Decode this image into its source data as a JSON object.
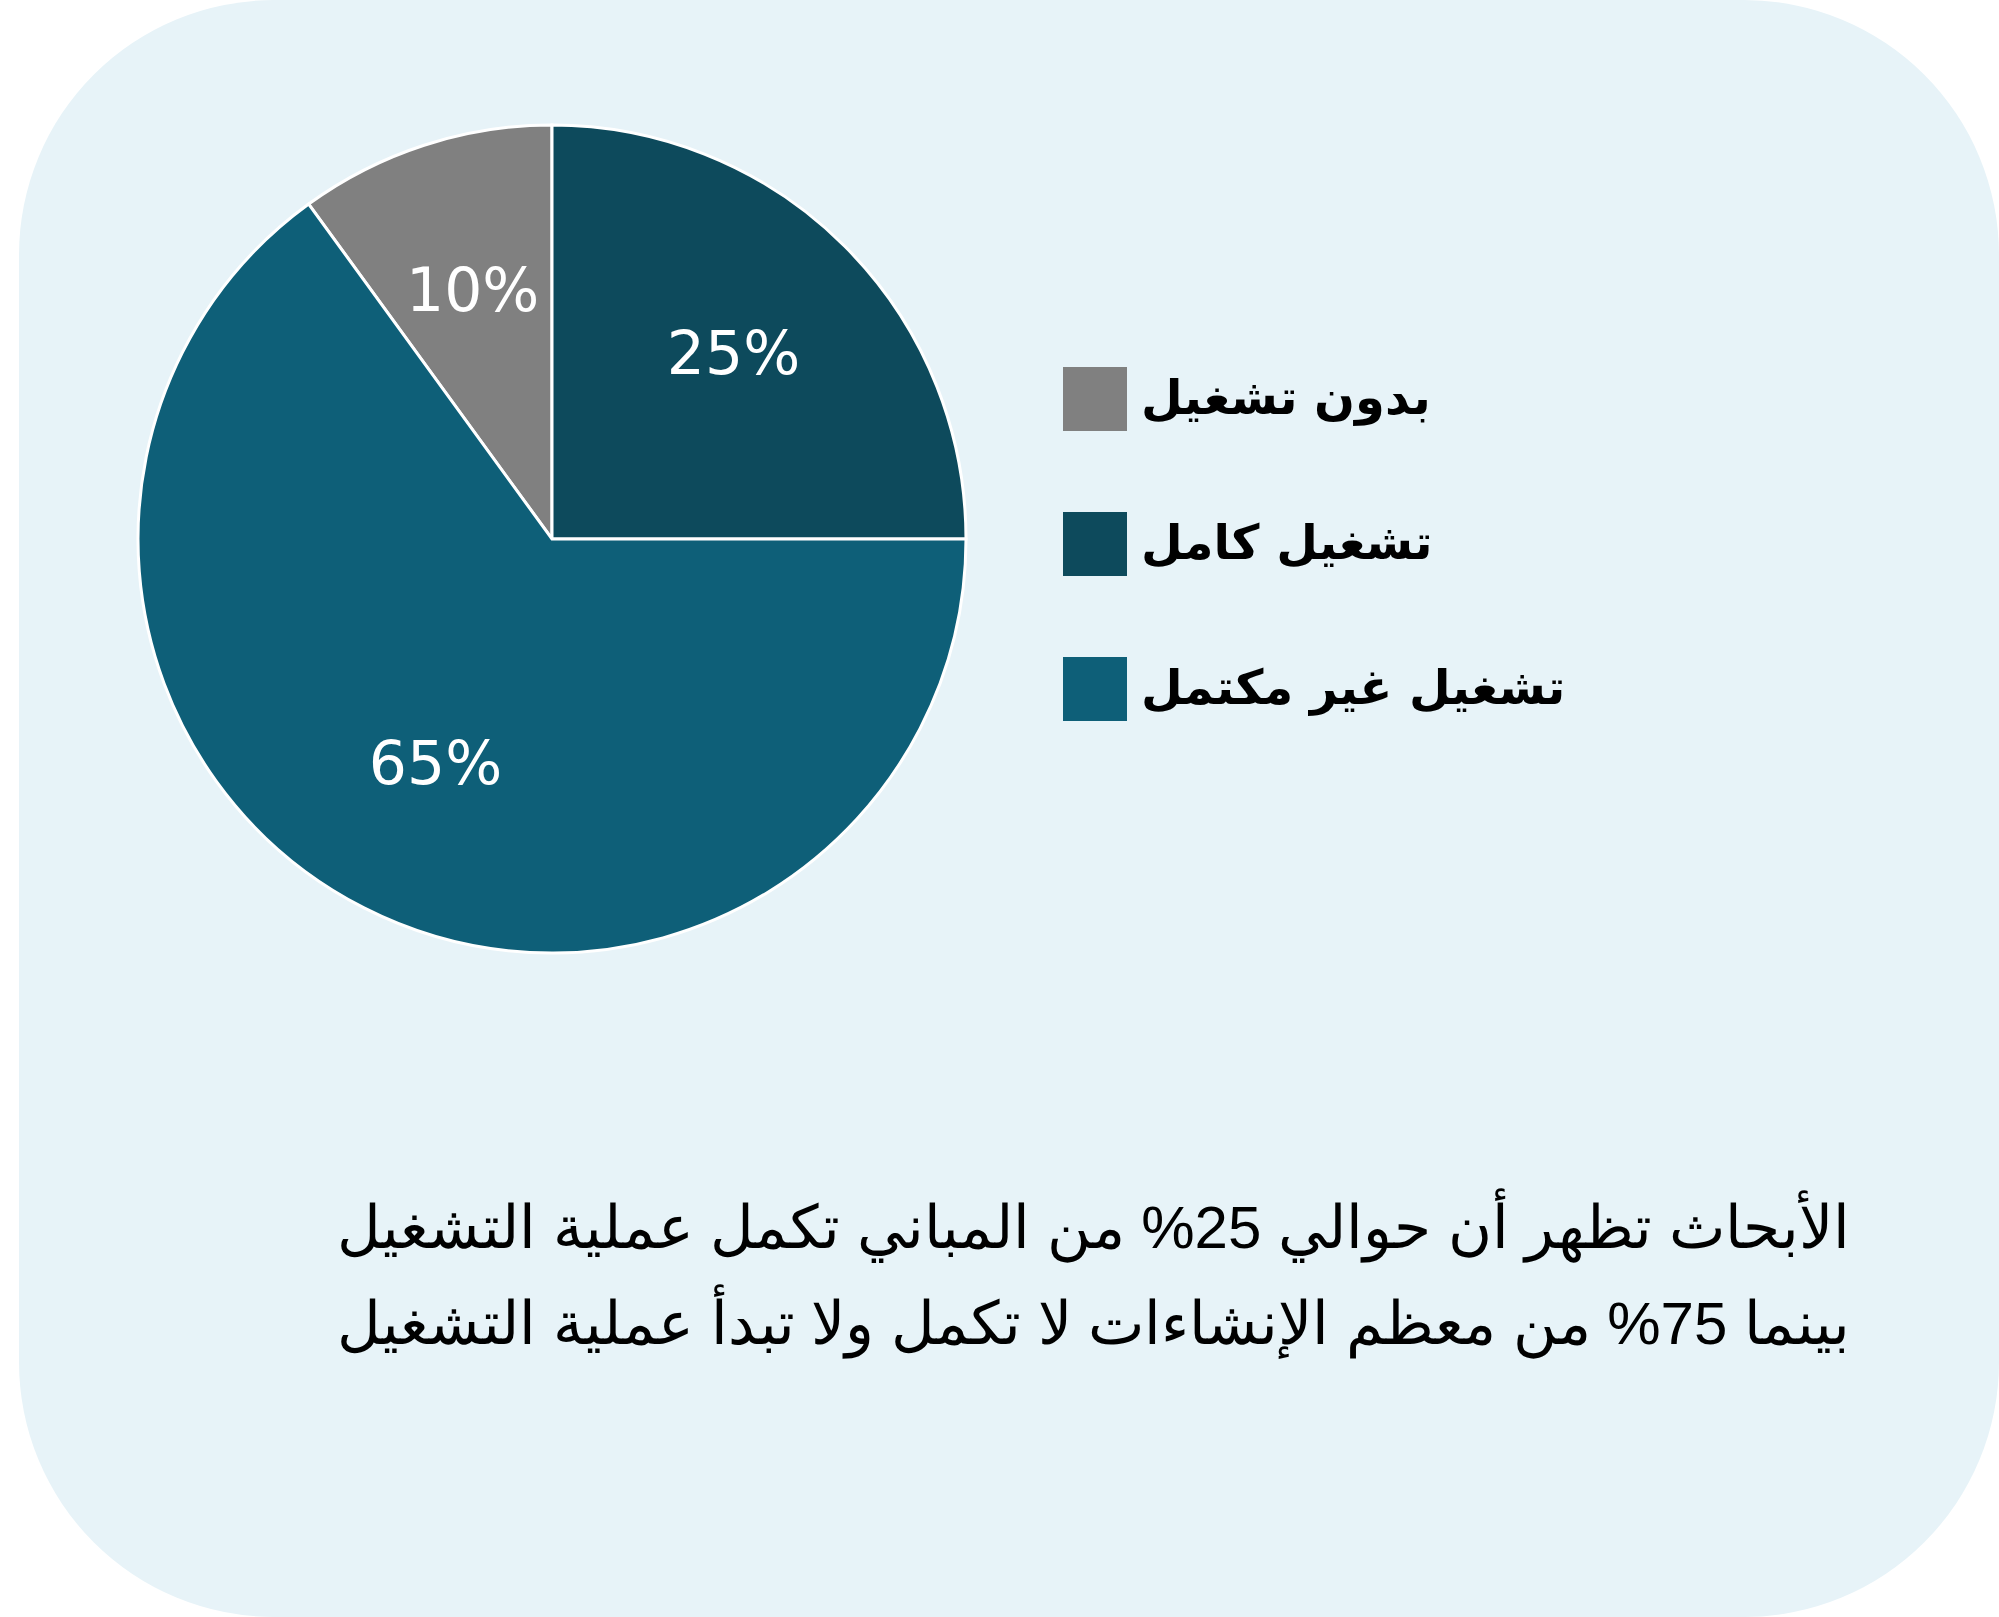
{
  "chart_data": {
    "type": "pie",
    "categories": [
      "بدون تشغيل",
      "تشغيل كامل",
      "تشغيل غير مكتمل"
    ],
    "values": [
      10,
      25,
      65
    ],
    "colors": [
      "#808080",
      "#0d4a5c",
      "#0e5f78"
    ],
    "value_labels": [
      "10%",
      "25%",
      "65%"
    ],
    "legend": "right",
    "annotations": [
      "الأبحاث تظهر أن حوالي 25% من المباني تكمل عملية التشغيل بينما 75% من معظم الإنشاءات لا تكمل ولا تبدأ عملية التشغيل"
    ]
  }
}
